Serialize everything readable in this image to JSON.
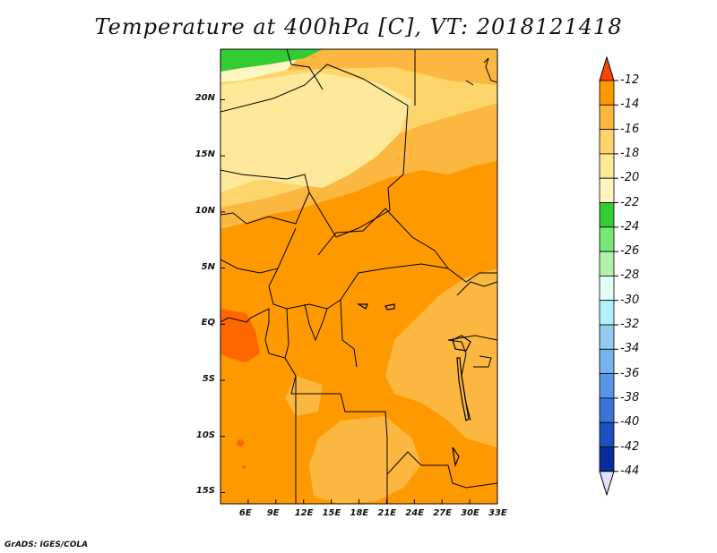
{
  "title": "Temperature at 400hPa [C], VT: 2018121418",
  "credit": "GrADS: IGES/COLA",
  "map": {
    "lon_range": [
      3,
      33
    ],
    "lat_range": [
      -16,
      24.5
    ],
    "lon_ticks": [
      {
        "value": 6,
        "label": "6E"
      },
      {
        "value": 9,
        "label": "9E"
      },
      {
        "value": 12,
        "label": "12E"
      },
      {
        "value": 15,
        "label": "15E"
      },
      {
        "value": 18,
        "label": "18E"
      },
      {
        "value": 21,
        "label": "21E"
      },
      {
        "value": 24,
        "label": "24E"
      },
      {
        "value": 27,
        "label": "27E"
      },
      {
        "value": 30,
        "label": "30E"
      },
      {
        "value": 33,
        "label": "33E"
      }
    ],
    "lat_ticks": [
      {
        "value": 20,
        "label": "20N"
      },
      {
        "value": 15,
        "label": "15N"
      },
      {
        "value": 10,
        "label": "10N"
      },
      {
        "value": 5,
        "label": "5N"
      },
      {
        "value": 0,
        "label": "EQ"
      },
      {
        "value": -5,
        "label": "5S"
      },
      {
        "value": -10,
        "label": "10S"
      },
      {
        "value": -15,
        "label": "15S"
      }
    ]
  },
  "colorbar": {
    "levels": [
      "-12",
      "-14",
      "-16",
      "-18",
      "-20",
      "-22",
      "-24",
      "-26",
      "-28",
      "-30",
      "-32",
      "-34",
      "-36",
      "-38",
      "-40",
      "-42",
      "-44"
    ],
    "colors": [
      "#ff6600",
      "#ff9900",
      "#fcb740",
      "#fdd56a",
      "#fde999",
      "#fff5c2",
      "#33cc33",
      "#77e577",
      "#b0f0a8",
      "#e0fff8",
      "#b4f0fa",
      "#96cbf0",
      "#78b2ec",
      "#5a96e6",
      "#3c74d8",
      "#1e50c0",
      "#0a2f9c",
      "#101060"
    ],
    "top_arrow_color": "#ff4400",
    "bottom_arrow_color": "#e0e0ff"
  }
}
